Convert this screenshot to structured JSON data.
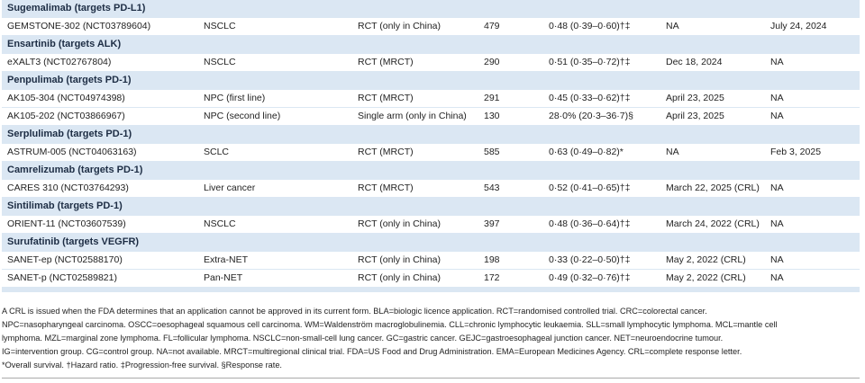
{
  "table": {
    "groups": [
      {
        "title": "Sugemalimab (targets PD-L1)",
        "rows": [
          [
            "GEMSTONE-302 (NCT03789604)",
            "NSCLC",
            "RCT (only in China)",
            "479",
            "0·48 (0·39–0·60)†‡",
            "NA",
            "July 24, 2024"
          ]
        ]
      },
      {
        "title": "Ensartinib (targets ALK)",
        "rows": [
          [
            "eXALT3 (NCT02767804)",
            "NSCLC",
            "RCT (MRCT)",
            "290",
            "0·51 (0·35–0·72)†‡",
            "Dec 18, 2024",
            "NA"
          ]
        ]
      },
      {
        "title": "Penpulimab (targets PD-1)",
        "rows": [
          [
            "AK105-304 (NCT04974398)",
            "NPC (first line)",
            "RCT (MRCT)",
            "291",
            "0·45 (0·33–0·62)†‡",
            "April 23, 2025",
            "NA"
          ],
          [
            "AK105-202 (NCT03866967)",
            "NPC (second line)",
            "Single arm (only in China)",
            "130",
            "28·0% (20·3–36·7)§",
            "April 23, 2025",
            "NA"
          ]
        ]
      },
      {
        "title": "Serplulimab (targets PD-1)",
        "rows": [
          [
            "ASTRUM-005 (NCT04063163)",
            "SCLC",
            "RCT (MRCT)",
            "585",
            "0·63 (0·49–0·82)*",
            "NA",
            "Feb 3, 2025"
          ]
        ]
      },
      {
        "title": "Camrelizumab (targets PD-1)",
        "rows": [
          [
            "CARES 310 (NCT03764293)",
            "Liver cancer",
            "RCT (MRCT)",
            "543",
            "0·52 (0·41–0·65)†‡",
            "March 22, 2025 (CRL)",
            "NA"
          ]
        ]
      },
      {
        "title": "Sintilimab (targets PD-1)",
        "rows": [
          [
            "ORIENT-11 (NCT03607539)",
            "NSCLC",
            "RCT (only in China)",
            "397",
            "0·48 (0·36–0·64)†‡",
            "March 24, 2022 (CRL)",
            "NA"
          ]
        ]
      },
      {
        "title": "Surufatinib (targets VEGFR)",
        "rows": [
          [
            "SANET-ep (NCT02588170)",
            "Extra-NET",
            "RCT (only in China)",
            "198",
            "0·33 (0·22–0·50)†‡",
            "May 2, 2022 (CRL)",
            "NA"
          ],
          [
            "SANET-p (NCT02589821)",
            "Pan-NET",
            "RCT (only in China)",
            "172",
            "0·49 (0·32–0·76)†‡",
            "May 2, 2022 (CRL)",
            "NA"
          ]
        ]
      }
    ],
    "footnote": [
      "A CRL is issued when the FDA determines that an application cannot be approved in its current form. BLA=biologic licence application. RCT=randomised controlled trial. CRC=colorectal cancer.",
      "NPC=nasopharyngeal carcinoma. OSCC=oesophageal squamous cell carcinoma. WM=Waldenström macroglobulinemia. CLL=chronic lymphocytic leukaemia. SLL=small lymphocytic lymphoma. MCL=mantle cell",
      "lymphoma. MZL=marginal zone lymphoma. FL=follicular lymphoma. NSCLC=non-small-cell lung cancer. GC=gastric cancer. GEJC=gastroesophageal junction cancer. NET=neuroendocrine tumour.",
      "IG=intervention group. CG=control group. NA=not available. MRCT=multiregional clinical trial. FDA=US Food and Drug Administration. EMA=European Medicines Agency. CRL=complete response letter.",
      "*Overall survival. †Hazard ratio. ‡Progression-free survival. §Response rate."
    ]
  }
}
